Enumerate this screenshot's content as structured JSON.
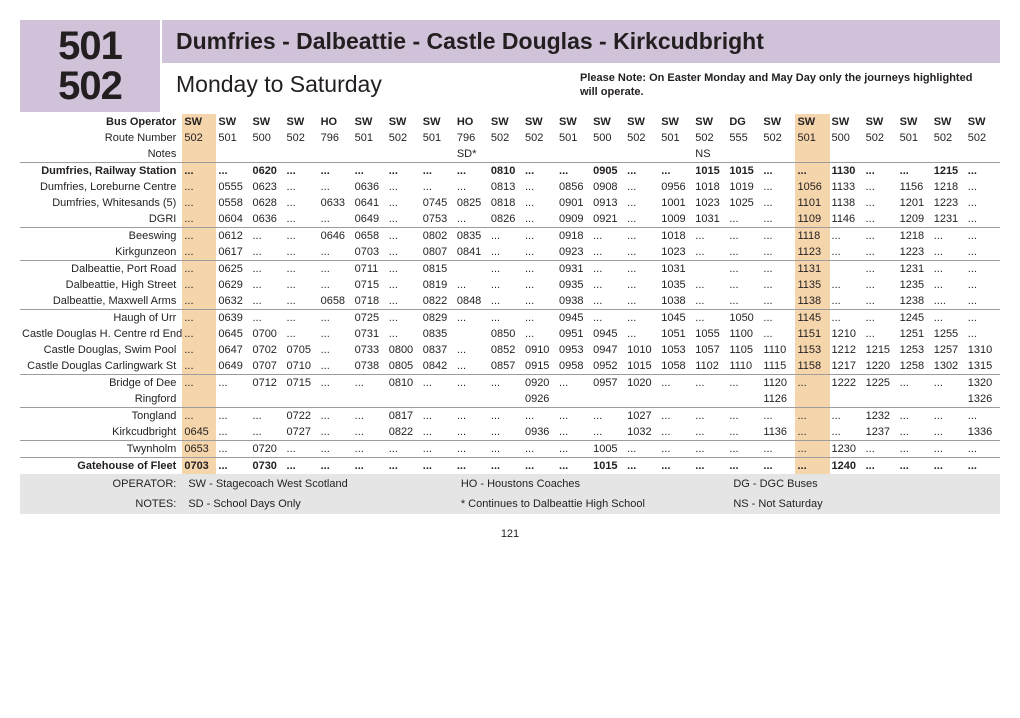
{
  "routeNumbers": [
    "501",
    "502"
  ],
  "titleMain": "Dumfries - Dalbeattie - Castle Douglas - Kirkcudbright",
  "subTitle": "Monday to Saturday",
  "note": "Please Note: On Easter Monday and May Day only the journeys highlighted will operate.",
  "labels": {
    "busOp": "Bus Operator",
    "routeNum": "Route Number",
    "notes": "Notes",
    "operator": "OPERATOR:",
    "notesCap": "NOTES:"
  },
  "highlightCols": [
    0,
    18
  ],
  "operators": [
    "SW",
    "SW",
    "SW",
    "SW",
    "HO",
    "SW",
    "SW",
    "SW",
    "HO",
    "SW",
    "SW",
    "SW",
    "SW",
    "SW",
    "SW",
    "SW",
    "DG",
    "SW",
    "SW",
    "SW",
    "SW",
    "SW",
    "SW",
    "SW"
  ],
  "routeNums": [
    "502",
    "501",
    "500",
    "502",
    "796",
    "501",
    "502",
    "501",
    "796",
    "502",
    "502",
    "501",
    "500",
    "502",
    "501",
    "502",
    "555",
    "502",
    "501",
    "500",
    "502",
    "501",
    "502",
    "502"
  ],
  "notesRow": [
    "",
    "",
    "",
    "",
    "",
    "",
    "",
    "",
    "SD*",
    "",
    "",
    "",
    "",
    "",
    "",
    "NS",
    "",
    "",
    "",
    "",
    "",
    "",
    "",
    ""
  ],
  "stops": [
    {
      "name": "Dumfries, Railway Station",
      "bold": true,
      "sep": false,
      "t": [
        "...",
        "...",
        "0620",
        "...",
        "...",
        "...",
        "...",
        "...",
        "...",
        "0810",
        "...",
        "...",
        "0905",
        "...",
        "...",
        "1015",
        "1015",
        "...",
        "...",
        "1130",
        "...",
        "...",
        "1215",
        "..."
      ]
    },
    {
      "name": "Dumfries, Loreburne Centre",
      "t": [
        "...",
        "0555",
        "0623",
        "...",
        "...",
        "0636",
        "...",
        "...",
        "...",
        "0813",
        "...",
        "0856",
        "0908",
        "...",
        "0956",
        "1018",
        "1019",
        "...",
        "1056",
        "1133",
        "...",
        "1156",
        "1218",
        "..."
      ]
    },
    {
      "name": "Dumfries, Whitesands  (5)",
      "t": [
        "...",
        "0558",
        "0628",
        "...",
        "0633",
        "0641",
        "...",
        "0745",
        "0825",
        "0818",
        "...",
        "0901",
        "0913",
        "...",
        "1001",
        "1023",
        "1025",
        "...",
        "1101",
        "1138",
        "...",
        "1201",
        "1223",
        "..."
      ]
    },
    {
      "name": "DGRI",
      "sep": true,
      "t": [
        "...",
        "0604",
        "0636",
        "...",
        "...",
        "0649",
        "...",
        "0753",
        "...",
        "0826",
        "...",
        "0909",
        "0921",
        "...",
        "1009",
        "1031",
        "...",
        "...",
        "1109",
        "1146",
        "...",
        "1209",
        "1231",
        "..."
      ]
    },
    {
      "name": "Beeswing",
      "t": [
        "...",
        "0612",
        "...",
        "...",
        "0646",
        "0658",
        "...",
        "0802",
        "0835",
        "...",
        "...",
        "0918",
        "...",
        "...",
        "1018",
        "...",
        "...",
        "...",
        "1118",
        "...",
        "...",
        "1218",
        "...",
        "..."
      ]
    },
    {
      "name": "Kirkgunzeon",
      "sep": true,
      "t": [
        "...",
        "0617",
        "...",
        "...",
        "...",
        "0703",
        "...",
        "0807",
        "0841",
        "...",
        "...",
        "0923",
        "...",
        "...",
        "1023",
        "...",
        "...",
        "...",
        "1123",
        "...",
        "...",
        "1223",
        "...",
        "..."
      ]
    },
    {
      "name": "Dalbeattie, Port Road",
      "t": [
        "...",
        "0625",
        "...",
        "...",
        "...",
        "0711",
        "...",
        "0815",
        "",
        "...",
        "...",
        "0931",
        "...",
        "...",
        "1031",
        "",
        "...",
        "...",
        "1131",
        "",
        "...",
        "1231",
        "...",
        "..."
      ]
    },
    {
      "name": "Dalbeattie, High Street",
      "t": [
        "...",
        "0629",
        "...",
        "...",
        "...",
        "0715",
        "...",
        "0819",
        "...",
        "...",
        "...",
        "0935",
        "...",
        "...",
        "1035",
        "...",
        "...",
        "...",
        "1135",
        "...",
        "...",
        "1235",
        "...",
        "..."
      ]
    },
    {
      "name": "Dalbeattie, Maxwell Arms",
      "sep": true,
      "t": [
        "...",
        "0632",
        "...",
        "...",
        "0658",
        "0718",
        "...",
        "0822",
        "0848",
        "...",
        "...",
        "0938",
        "...",
        "...",
        "1038",
        "...",
        "...",
        "...",
        "1138",
        "...",
        "...",
        "1238",
        "....",
        "..."
      ]
    },
    {
      "name": "Haugh of Urr",
      "t": [
        "...",
        "0639",
        "...",
        "...",
        "...",
        "0725",
        "...",
        "0829",
        "...",
        "...",
        "...",
        "0945",
        "...",
        "...",
        "1045",
        "...",
        "1050",
        "...",
        "1145",
        "...",
        "...",
        "1245",
        "...",
        "..."
      ]
    },
    {
      "name": "Castle Douglas H. Centre rd End",
      "t": [
        "...",
        "0645",
        "0700",
        "...",
        "...",
        "0731",
        "...",
        "0835",
        "",
        "0850",
        "...",
        "0951",
        "0945",
        "...",
        "1051",
        "1055",
        "1100",
        "...",
        "1151",
        "1210",
        "...",
        "1251",
        "1255",
        "..."
      ]
    },
    {
      "name": "Castle Douglas, Swim Pool",
      "t": [
        "...",
        "0647",
        "0702",
        "0705",
        "...",
        "0733",
        "0800",
        "0837",
        "...",
        "0852",
        "0910",
        "0953",
        "0947",
        "1010",
        "1053",
        "1057",
        "1105",
        "1110",
        "1153",
        "1212",
        "1215",
        "1253",
        "1257",
        "1310"
      ]
    },
    {
      "name": "Castle Douglas Carlingwark St",
      "sep": true,
      "t": [
        "...",
        "0649",
        "0707",
        "0710",
        "...",
        "0738",
        "0805",
        "0842",
        "...",
        "0857",
        "0915",
        "0958",
        "0952",
        "1015",
        "1058",
        "1102",
        "1110",
        "1115",
        "1158",
        "1217",
        "1220",
        "1258",
        "1302",
        "1315"
      ]
    },
    {
      "name": "Bridge of Dee",
      "t": [
        "...",
        "...",
        "0712",
        "0715",
        "...",
        "...",
        "0810",
        "...",
        "...",
        "...",
        "0920",
        "...",
        "0957",
        "1020",
        "...",
        "...",
        "...",
        "1120",
        "...",
        "1222",
        "1225",
        "...",
        "...",
        "1320"
      ]
    },
    {
      "name": "Ringford",
      "sep": true,
      "t": [
        "",
        "",
        "",
        "",
        "",
        "",
        "",
        "",
        "",
        "",
        "0926",
        "",
        "",
        "",
        "",
        "",
        "",
        "1126",
        "",
        "",
        "",
        "",
        "",
        "1326"
      ]
    },
    {
      "name": "Tongland",
      "t": [
        "...",
        "...",
        "...",
        "0722",
        "...",
        "...",
        "0817",
        "...",
        "...",
        "...",
        "...",
        "...",
        "...",
        "1027",
        "...",
        "...",
        "...",
        "...",
        "...",
        "...",
        "1232",
        "...",
        "...",
        "..."
      ]
    },
    {
      "name": "Kirkcudbright",
      "sep": true,
      "t": [
        "0645",
        "...",
        "...",
        "0727",
        "...",
        "...",
        "0822",
        "...",
        "...",
        "...",
        "0936",
        "...",
        "...",
        "1032",
        "...",
        "...",
        "...",
        "1136",
        "...",
        "...",
        "1237",
        "...",
        "...",
        "1336"
      ]
    },
    {
      "name": "Twynholm",
      "sep": true,
      "t": [
        "0653",
        "...",
        "0720",
        "...",
        "...",
        "...",
        "...",
        "...",
        "...",
        "...",
        "...",
        "...",
        "1005",
        "...",
        "...",
        "...",
        "...",
        "...",
        "...",
        "1230",
        "...",
        "...",
        "...",
        "..."
      ]
    },
    {
      "name": "Gatehouse of Fleet",
      "bold": true,
      "t": [
        "0703",
        "...",
        "0730",
        "...",
        "...",
        "...",
        "...",
        "...",
        "...",
        "...",
        "...",
        "...",
        "1015",
        "...",
        "...",
        "...",
        "...",
        "...",
        "...",
        "1240",
        "...",
        "...",
        "...",
        "..."
      ]
    }
  ],
  "legend": {
    "op": [
      [
        "SW - Stagecoach West Scotland"
      ],
      [
        "HO - Houstons Coaches"
      ],
      [
        "DG - DGC Buses"
      ]
    ],
    "notes": [
      [
        "SD - School Days Only"
      ],
      [
        "* Continues to Dalbeattie High School"
      ],
      [
        "NS - Not Saturday"
      ]
    ]
  },
  "pageNum": "121"
}
